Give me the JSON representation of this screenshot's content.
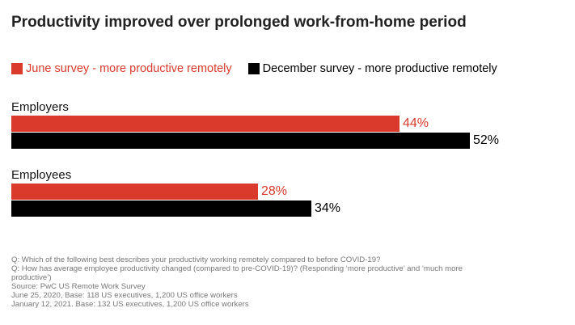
{
  "chart_data": {
    "type": "bar",
    "orientation": "horizontal",
    "title": "Productivity improved over prolonged work-from-home period",
    "categories": [
      "Employers",
      "Employees"
    ],
    "series": [
      {
        "name": "June survey - more productive remotely",
        "color": "#d93a2b",
        "values": [
          44,
          28
        ],
        "labels": [
          "44%",
          "28%"
        ]
      },
      {
        "name": "December survey - more productive remotely",
        "color": "#000000",
        "values": [
          52,
          34
        ],
        "labels": [
          "52%",
          "34%"
        ]
      }
    ],
    "xlim": [
      0,
      60
    ],
    "grid": false,
    "legend_position": "top-left"
  },
  "footnotes": [
    "Q: Which of the following best describes your productivity working remotely compared to before COVID-19?",
    "Q: How has average employee productivity changed (compared to pre-COVID-19)? (Responding ‘more productive’ and ‘much more productive’)",
    "Source: PwC US Remote Work Survey",
    "June 25, 2020, Base: 118 US executives, 1,200 US office workers",
    "January 12, 2021. Base: 132 US executives, 1,200 US office workers"
  ]
}
